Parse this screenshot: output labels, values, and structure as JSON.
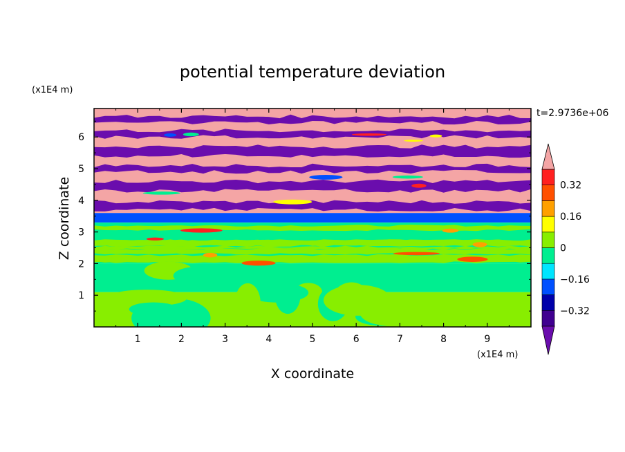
{
  "chart_data": {
    "type": "heatmap",
    "title": "potential temperature deviation",
    "time_label": "t=2.9736e+06",
    "xlabel": "X coordinate",
    "ylabel": "Z coordinate",
    "xunit": "(x1E4 m)",
    "yunit": "(x1E4 m)",
    "xlim": [
      0,
      10
    ],
    "ylim": [
      0,
      6.9
    ],
    "xticks": [
      1,
      2,
      3,
      4,
      5,
      6,
      7,
      8,
      9
    ],
    "xtick_labels": [
      "1",
      "2",
      "3",
      "4",
      "5",
      "6",
      "7",
      "8",
      "9"
    ],
    "yticks": [
      1,
      2,
      3,
      4,
      5,
      6
    ],
    "ytick_labels": [
      "1",
      "2",
      "3",
      "4",
      "5",
      "6"
    ],
    "colorbar": {
      "levels": [
        -0.4,
        -0.32,
        -0.24,
        -0.16,
        -0.08,
        0,
        0.08,
        0.16,
        0.24,
        0.32,
        0.4
      ],
      "labels": [
        {
          "value": 0.32,
          "text": "0.32"
        },
        {
          "value": 0.16,
          "text": "0.16"
        },
        {
          "value": 0,
          "text": "0"
        },
        {
          "value": -0.16,
          "text": "−0.16"
        },
        {
          "value": -0.32,
          "text": "−0.32"
        }
      ],
      "colors": [
        "#6a0dad",
        "#400090",
        "#0000aa",
        "#0050ff",
        "#00e5ff",
        "#00ee90",
        "#88ee00",
        "#ffff00",
        "#ffa000",
        "#ff5000",
        "#ff2020",
        "#f4a5a5"
      ],
      "extend": "both"
    },
    "layers": [
      {
        "z": [
          0.0,
          1.1
        ],
        "dominant": "#88ee00",
        "secondary": "#00ee90"
      },
      {
        "z": [
          1.1,
          2.0
        ],
        "dominant": "#00ee90",
        "secondary": "#88ee00"
      },
      {
        "z": [
          2.0,
          3.3
        ],
        "dominant": "#00ee90",
        "secondary": "#88ee00"
      },
      {
        "z": [
          3.3,
          3.6
        ],
        "dominant": "#0050ff",
        "secondary": "#00e5ff"
      },
      {
        "z": [
          3.6,
          6.9
        ],
        "dominant": "#f4a5a5",
        "secondary": "#6a0dad"
      }
    ]
  }
}
